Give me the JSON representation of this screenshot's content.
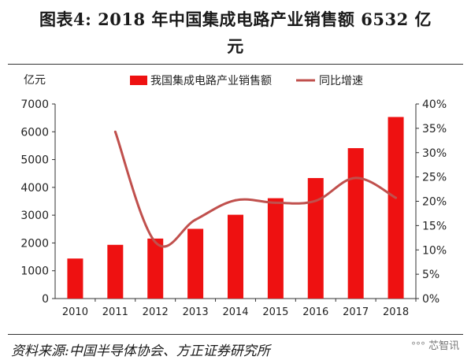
{
  "header": {
    "title_line1": "图表4:   2018 年中国集成电路产业销售额 6532 亿",
    "title_line2": "元"
  },
  "chart_data": {
    "type": "bar",
    "categories": [
      "2010",
      "2011",
      "2012",
      "2013",
      "2014",
      "2015",
      "2016",
      "2017",
      "2018"
    ],
    "series": [
      {
        "name": "我国集成电路产业销售额",
        "type": "bar",
        "axis": "left",
        "color": "#ee1111",
        "values": [
          1440,
          1933,
          2158,
          2508,
          3015,
          3610,
          4335,
          5411,
          6532
        ]
      },
      {
        "name": "同比增速",
        "type": "line",
        "axis": "right",
        "color": "#c0504d",
        "values": [
          null,
          34.3,
          11.6,
          16.2,
          20.2,
          19.7,
          20.1,
          24.8,
          20.7
        ]
      }
    ],
    "left_axis": {
      "unit_label": "亿元",
      "ylim": [
        0,
        7000
      ],
      "ticks": [
        "0",
        "1000",
        "2000",
        "3000",
        "4000",
        "5000",
        "6000",
        "7000"
      ]
    },
    "right_axis": {
      "ylim": [
        0,
        40
      ],
      "ticks": [
        "0%",
        "5%",
        "10%",
        "15%",
        "20%",
        "25%",
        "30%",
        "35%",
        "40%"
      ]
    },
    "legend_position": "top-center",
    "grid": false
  },
  "source": "资料来源:中国半导体协会、方正证券研究所",
  "watermark": {
    "dots": "°°°",
    "text": "芯智讯"
  }
}
